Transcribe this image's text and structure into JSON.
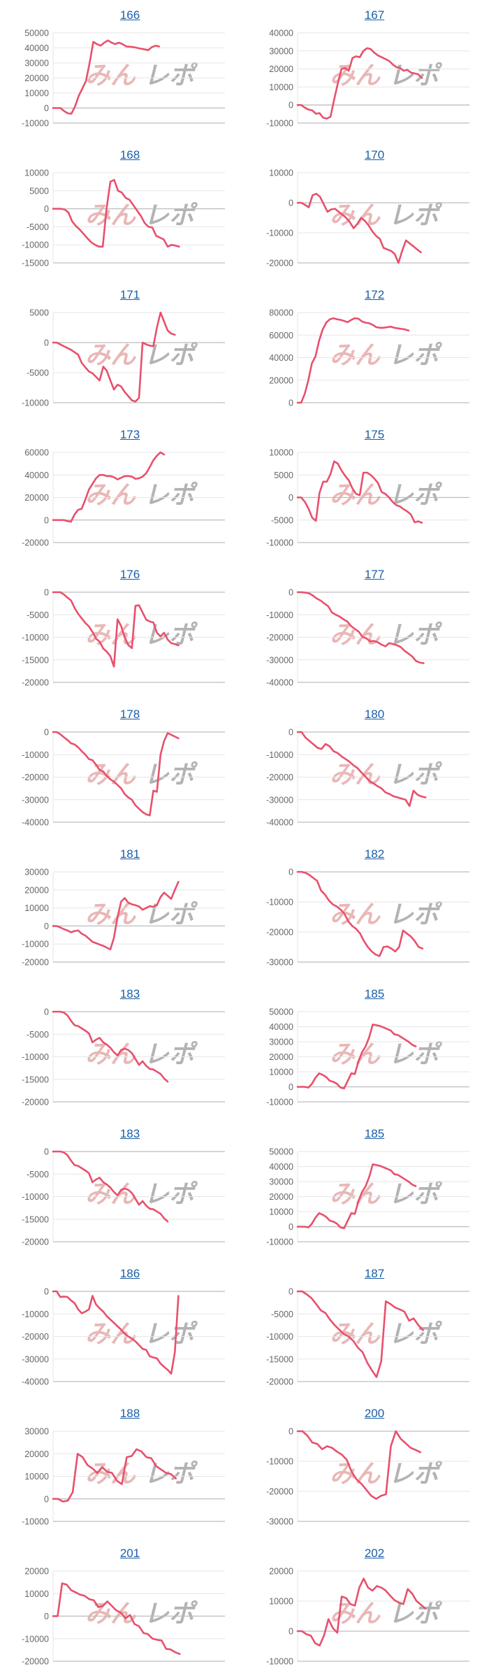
{
  "style": {
    "line_color": "#e8506c",
    "title_color": "#1a5fa8",
    "grid_color": "#e6e6e6",
    "zero_line_color": "#bdbdbd"
  },
  "watermark": {
    "part1": "みん",
    "part2": "レポ"
  },
  "chart_data": [
    {
      "type": "line",
      "title": "166",
      "ylim": [
        -10000,
        50000
      ],
      "yticks": [
        50000,
        40000,
        30000,
        20000,
        10000,
        0,
        -10000
      ],
      "xlim": [
        0,
        47
      ],
      "values": [
        0,
        0,
        0,
        -2000,
        -3500,
        -3800,
        1000,
        8000,
        13000,
        18000,
        30000,
        44000,
        42500,
        41500,
        43500,
        45000,
        43500,
        42500,
        43500,
        42500,
        41000,
        40800,
        40500,
        40000,
        39500,
        39000,
        38500,
        40500,
        41500,
        41000
      ]
    },
    {
      "type": "line",
      "title": "167",
      "ylim": [
        -10000,
        40000
      ],
      "yticks": [
        40000,
        30000,
        20000,
        10000,
        0,
        -10000
      ],
      "xlim": [
        0,
        47
      ],
      "values": [
        0,
        0,
        -1500,
        -2500,
        -3000,
        -4800,
        -4500,
        -7000,
        -7500,
        -6500,
        3000,
        12000,
        20000,
        20500,
        19000,
        26000,
        27000,
        26500,
        30000,
        31500,
        31000,
        29000,
        27500,
        26500,
        25500,
        24500,
        22500,
        21000,
        20500,
        19000,
        19500,
        18000,
        17500,
        17000,
        15000
      ]
    },
    {
      "type": "line",
      "title": "168",
      "ylim": [
        -15000,
        10000
      ],
      "yticks": [
        10000,
        5000,
        0,
        -5000,
        -10000,
        -15000
      ],
      "xlim": [
        0,
        45
      ],
      "values": [
        0,
        0,
        0,
        -200,
        -1000,
        -3500,
        -4800,
        -5800,
        -7000,
        -8200,
        -9300,
        -10000,
        -10500,
        -10500,
        0,
        7500,
        8000,
        5000,
        4500,
        3000,
        2500,
        1000,
        -500,
        -2000,
        -4000,
        -5000,
        -5200,
        -7500,
        -8000,
        -8500,
        -10500,
        -10000,
        -10200,
        -10500
      ]
    },
    {
      "type": "line",
      "title": "170",
      "ylim": [
        -20000,
        10000
      ],
      "yticks": [
        10000,
        0,
        -10000,
        -20000
      ],
      "xlim": [
        0,
        46
      ],
      "values": [
        0,
        0,
        -700,
        -1500,
        2500,
        3000,
        2000,
        -500,
        -3000,
        -2200,
        -2000,
        -3000,
        -4000,
        -5000,
        -6500,
        -8500,
        -7000,
        -5000,
        -6000,
        -7500,
        -9500,
        -11000,
        -12000,
        -15000,
        -15500,
        -16000,
        -17000,
        -20000,
        -16000,
        -12500,
        -13500,
        -14500,
        -15500,
        -16500
      ]
    },
    {
      "type": "line",
      "title": "171",
      "ylim": [
        -10000,
        5000
      ],
      "yticks": [
        5000,
        0,
        -5000,
        -10000
      ],
      "xlim": [
        0,
        48
      ],
      "values": [
        0,
        0,
        -300,
        -600,
        -900,
        -1200,
        -1600,
        -2000,
        -3400,
        -4100,
        -4800,
        -5100,
        -5700,
        -6300,
        -4000,
        -4700,
        -6300,
        -7800,
        -7000,
        -7300,
        -8200,
        -8900,
        -9600,
        -9800,
        -9200,
        0,
        -300,
        -500,
        -600,
        2500,
        5000,
        3500,
        2000,
        1500,
        1300
      ]
    },
    {
      "type": "line",
      "title": "172",
      "ylim": [
        0,
        80000
      ],
      "yticks": [
        80000,
        60000,
        40000,
        20000,
        0
      ],
      "xlim": [
        0,
        48
      ],
      "values": [
        0,
        0,
        8000,
        20000,
        35000,
        41000,
        55000,
        65000,
        71000,
        74000,
        75000,
        74000,
        73500,
        72500,
        71500,
        73500,
        75000,
        74500,
        72000,
        71000,
        70500,
        69000,
        67000,
        66500,
        66500,
        67000,
        67500,
        66500,
        66000,
        65500,
        65000,
        64000
      ]
    },
    {
      "type": "line",
      "title": "173",
      "ylim": [
        -20000,
        60000
      ],
      "yticks": [
        60000,
        40000,
        20000,
        0,
        -20000
      ],
      "xlim": [
        0,
        48
      ],
      "values": [
        0,
        0,
        0,
        0,
        -1000,
        -1500,
        5000,
        9000,
        10000,
        18000,
        27000,
        32000,
        37000,
        40000,
        40000,
        39000,
        39000,
        38000,
        36000,
        37500,
        39000,
        39000,
        38500,
        36500,
        37000,
        38500,
        41500,
        47000,
        53000,
        57000,
        60000,
        58000
      ]
    },
    {
      "type": "line",
      "title": "175",
      "ylim": [
        -10000,
        10000
      ],
      "yticks": [
        10000,
        5000,
        0,
        -5000,
        -10000
      ],
      "xlim": [
        0,
        47
      ],
      "values": [
        0,
        0,
        -1000,
        -2500,
        -4500,
        -5200,
        1000,
        3500,
        3500,
        5200,
        8000,
        7500,
        6000,
        4800,
        3800,
        2000,
        800,
        500,
        5500,
        5500,
        5000,
        4200,
        3200,
        1200,
        800,
        0,
        -1000,
        -1700,
        -2000,
        -2600,
        -3100,
        -3800,
        -5500,
        -5300,
        -5600
      ]
    },
    {
      "type": "line",
      "title": "176",
      "ylim": [
        -20000,
        0
      ],
      "yticks": [
        0,
        -5000,
        -10000,
        -15000,
        -20000
      ],
      "xlim": [
        0,
        48
      ],
      "values": [
        0,
        0,
        0,
        -500,
        -1200,
        -1800,
        -3500,
        -4800,
        -5800,
        -6800,
        -7600,
        -8800,
        -10300,
        -11000,
        -12500,
        -13200,
        -14200,
        -16500,
        -6000,
        -7500,
        -10000,
        -11700,
        -12400,
        -3000,
        -2900,
        -4500,
        -6100,
        -6500,
        -6700,
        -9000,
        -9800,
        -9000,
        -10500,
        -11300,
        -11500,
        -11800
      ]
    },
    {
      "type": "line",
      "title": "177",
      "ylim": [
        -40000,
        0
      ],
      "yticks": [
        0,
        -10000,
        -20000,
        -30000,
        -40000
      ],
      "xlim": [
        0,
        45
      ],
      "values": [
        0,
        0,
        -200,
        -500,
        -1500,
        -2800,
        -3700,
        -5000,
        -6200,
        -9000,
        -10000,
        -10800,
        -12000,
        -13000,
        -15000,
        -16300,
        -17500,
        -19800,
        -20500,
        -21800,
        -21600,
        -22200,
        -23300,
        -24000,
        -22600,
        -23000,
        -23500,
        -24300,
        -26000,
        -27200,
        -28500,
        -30500,
        -31200,
        -31500
      ]
    },
    {
      "type": "line",
      "title": "178",
      "ylim": [
        -40000,
        0
      ],
      "yticks": [
        0,
        -10000,
        -20000,
        -30000,
        -40000
      ],
      "xlim": [
        0,
        48
      ],
      "values": [
        0,
        0,
        -1000,
        -2300,
        -3500,
        -5000,
        -5500,
        -6800,
        -8500,
        -10000,
        -12000,
        -12500,
        -14500,
        -16800,
        -17500,
        -19500,
        -21000,
        -22000,
        -23500,
        -25000,
        -27500,
        -29000,
        -30000,
        -32500,
        -34000,
        -35500,
        -36500,
        -37000,
        -26000,
        -26500,
        -10000,
        -4000,
        -500,
        -1200,
        -2000,
        -2800
      ]
    },
    {
      "type": "line",
      "title": "180",
      "ylim": [
        -40000,
        0
      ],
      "yticks": [
        0,
        -10000,
        -20000,
        -30000,
        -40000
      ],
      "xlim": [
        0,
        43
      ],
      "values": [
        0,
        0,
        -2500,
        -4000,
        -5500,
        -7000,
        -7500,
        -5300,
        -6300,
        -8500,
        -9300,
        -10800,
        -12000,
        -13200,
        -14800,
        -16000,
        -18000,
        -19800,
        -21800,
        -22800,
        -24000,
        -25000,
        -26800,
        -27500,
        -28500,
        -29000,
        -29500,
        -30000,
        -32800,
        -26000,
        -27800,
        -28600,
        -29000
      ]
    },
    {
      "type": "line",
      "title": "181",
      "ylim": [
        -20000,
        30000
      ],
      "yticks": [
        30000,
        20000,
        10000,
        0,
        -10000,
        -20000
      ],
      "xlim": [
        0,
        48
      ],
      "values": [
        0,
        0,
        -800,
        -1800,
        -2500,
        -3500,
        -2800,
        -2500,
        -4300,
        -5300,
        -7000,
        -8800,
        -9500,
        -10300,
        -11000,
        -12000,
        -13000,
        -6500,
        5000,
        13500,
        15500,
        13000,
        12000,
        11500,
        10800,
        9000,
        10000,
        11000,
        10600,
        11500,
        16000,
        18500,
        16800,
        15000,
        20000,
        24500
      ]
    },
    {
      "type": "line",
      "title": "182",
      "ylim": [
        -30000,
        0
      ],
      "yticks": [
        0,
        -10000,
        -20000,
        -30000
      ],
      "xlim": [
        0,
        44
      ],
      "values": [
        0,
        0,
        -300,
        -1000,
        -2000,
        -3000,
        -6200,
        -7500,
        -9500,
        -10800,
        -11500,
        -12500,
        -14000,
        -16500,
        -18000,
        -19000,
        -20500,
        -23000,
        -25000,
        -26500,
        -27500,
        -28000,
        -25000,
        -24800,
        -25500,
        -26500,
        -25000,
        -19500,
        -20500,
        -21500,
        -23000,
        -25000,
        -25500
      ]
    },
    {
      "type": "line",
      "title": "183",
      "ylim": [
        -20000,
        0
      ],
      "yticks": [
        0,
        -5000,
        -10000,
        -15000,
        -20000
      ],
      "xlim": [
        0,
        48
      ],
      "values": [
        0,
        0,
        0,
        -200,
        -800,
        -2000,
        -3000,
        -3200,
        -3700,
        -4200,
        -4800,
        -6800,
        -6200,
        -5800,
        -6800,
        -7300,
        -8000,
        -9000,
        -9700,
        -8500,
        -8200,
        -8500,
        -9200,
        -10500,
        -11800,
        -11000,
        -12000,
        -12700,
        -12800,
        -13300,
        -13800,
        -14800,
        -15500
      ]
    },
    {
      "type": "line",
      "title": "185",
      "ylim": [
        -10000,
        50000
      ],
      "yticks": [
        50000,
        40000,
        30000,
        20000,
        10000,
        0,
        -10000
      ],
      "xlim": [
        0,
        48
      ],
      "values": [
        0,
        0,
        0,
        -500,
        2000,
        6000,
        9000,
        8000,
        6500,
        4000,
        3300,
        2000,
        -500,
        -1000,
        4000,
        9000,
        8500,
        17000,
        23000,
        27000,
        33000,
        41500,
        41000,
        40500,
        39500,
        38500,
        37500,
        35000,
        34500,
        33000,
        31500,
        30000,
        28000,
        27000
      ]
    },
    {
      "type": "line",
      "title": "183",
      "ylim": [
        -20000,
        0
      ],
      "yticks": [
        0,
        -5000,
        -10000,
        -15000,
        -20000
      ],
      "xlim": [
        0,
        48
      ],
      "values": [
        0,
        0,
        0,
        -200,
        -800,
        -2000,
        -3000,
        -3200,
        -3700,
        -4200,
        -4800,
        -6800,
        -6200,
        -5800,
        -6800,
        -7300,
        -8000,
        -9000,
        -9700,
        -8500,
        -8200,
        -8500,
        -9200,
        -10500,
        -11800,
        -11000,
        -12000,
        -12700,
        -12800,
        -13300,
        -13800,
        -14800,
        -15500
      ]
    },
    {
      "type": "line",
      "title": "185",
      "ylim": [
        -10000,
        50000
      ],
      "yticks": [
        50000,
        40000,
        30000,
        20000,
        10000,
        0,
        -10000
      ],
      "xlim": [
        0,
        48
      ],
      "values": [
        0,
        0,
        0,
        -500,
        2000,
        6000,
        9000,
        8000,
        6500,
        4000,
        3300,
        2000,
        -500,
        -1000,
        4000,
        9000,
        8500,
        17000,
        23000,
        27000,
        33000,
        41500,
        41000,
        40500,
        39500,
        38500,
        37500,
        35000,
        34500,
        33000,
        31500,
        30000,
        28000,
        27000
      ]
    },
    {
      "type": "line",
      "title": "186",
      "ylim": [
        -40000,
        0
      ],
      "yticks": [
        0,
        -10000,
        -20000,
        -30000,
        -40000
      ],
      "xlim": [
        0,
        48
      ],
      "values": [
        0,
        0,
        -2500,
        -2300,
        -2500,
        -4000,
        -5200,
        -8000,
        -9700,
        -9000,
        -8000,
        -2000,
        -5800,
        -7500,
        -9000,
        -11000,
        -12500,
        -14000,
        -15500,
        -17000,
        -18800,
        -20000,
        -21000,
        -22200,
        -23800,
        -25500,
        -26000,
        -28800,
        -29300,
        -29700,
        -32000,
        -33500,
        -34800,
        -36500,
        -27000,
        -2000
      ]
    },
    {
      "type": "line",
      "title": "187",
      "ylim": [
        -20000,
        0
      ],
      "yticks": [
        0,
        -5000,
        -10000,
        -15000,
        -20000
      ],
      "xlim": [
        0,
        37
      ],
      "values": [
        0,
        0,
        -700,
        -1500,
        -2800,
        -4200,
        -4800,
        -6300,
        -7500,
        -8500,
        -9500,
        -10000,
        -11000,
        -12500,
        -13500,
        -15800,
        -17500,
        -19000,
        -15500,
        -2200,
        -2800,
        -3600,
        -4000,
        -4500,
        -6500,
        -6000,
        -7500,
        -8600
      ]
    },
    {
      "type": "line",
      "title": "188",
      "ylim": [
        -10000,
        30000
      ],
      "yticks": [
        30000,
        20000,
        10000,
        0,
        -10000
      ],
      "xlim": [
        0,
        35
      ],
      "values": [
        0,
        0,
        -1200,
        -800,
        3000,
        20000,
        18500,
        15000,
        13500,
        11500,
        14000,
        12000,
        11500,
        8000,
        6500,
        18500,
        19000,
        22000,
        21000,
        18500,
        18000,
        14500,
        13000,
        11500,
        11000,
        9000
      ]
    },
    {
      "type": "line",
      "title": "200",
      "ylim": [
        -30000,
        0
      ],
      "yticks": [
        0,
        -10000,
        -20000,
        -30000
      ],
      "xlim": [
        0,
        35
      ],
      "values": [
        0,
        0,
        -1500,
        -3800,
        -4200,
        -6000,
        -5000,
        -5500,
        -6800,
        -7800,
        -9500,
        -13500,
        -16000,
        -17500,
        -19500,
        -21500,
        -22500,
        -21500,
        -21000,
        -5000,
        0,
        -2500,
        -4000,
        -5500,
        -6200,
        -7000
      ]
    },
    {
      "type": "line",
      "title": "201",
      "ylim": [
        -20000,
        20000
      ],
      "yticks": [
        20000,
        10000,
        0,
        -10000,
        -20000
      ],
      "xlim": [
        0,
        38
      ],
      "values": [
        0,
        0,
        14500,
        14000,
        11500,
        10500,
        9500,
        9000,
        7500,
        7000,
        4000,
        4500,
        6500,
        4500,
        2500,
        1500,
        -1000,
        500,
        -3500,
        -4500,
        -7500,
        -8000,
        -10000,
        -10500,
        -10800,
        -14500,
        -14800,
        -16000,
        -16800
      ]
    },
    {
      "type": "line",
      "title": "202",
      "ylim": [
        -10000,
        20000
      ],
      "yticks": [
        20000,
        10000,
        0,
        -10000
      ],
      "xlim": [
        0,
        39
      ],
      "values": [
        0,
        0,
        -1000,
        -1500,
        -4000,
        -4800,
        -1500,
        4000,
        1000,
        -500,
        11500,
        11000,
        9000,
        8500,
        14500,
        17500,
        14500,
        13500,
        15000,
        14500,
        13500,
        11800,
        10300,
        9500,
        9000,
        14000,
        12500,
        10000,
        8800,
        7500
      ]
    }
  ]
}
